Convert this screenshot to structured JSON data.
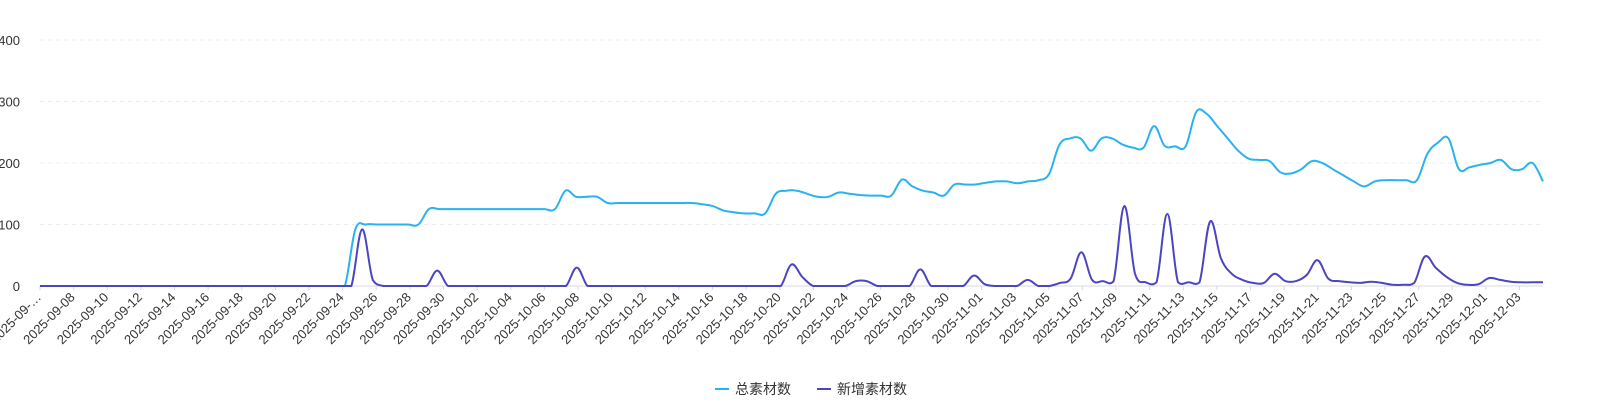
{
  "chart_data": {
    "type": "line",
    "title": "",
    "xlabel": "",
    "ylabel": "",
    "ylim": [
      0,
      400
    ],
    "yticks": [
      0,
      100,
      200,
      300,
      400
    ],
    "grid": true,
    "legend_position": "bottom-center",
    "x_tick_labels": [
      "2025-09-…",
      "2025-09-08",
      "2025-09-10",
      "2025-09-12",
      "2025-09-14",
      "2025-09-16",
      "2025-09-18",
      "2025-09-20",
      "2025-09-22",
      "2025-09-24",
      "2025-09-26",
      "2025-09-28",
      "2025-09-30",
      "2025-10-02",
      "2025-10-04",
      "2025-10-06",
      "2025-10-08",
      "2025-10-10",
      "2025-10-12",
      "2025-10-14",
      "2025-10-16",
      "2025-10-18",
      "2025-10-20",
      "2025-10-22",
      "2025-10-24",
      "2025-10-26",
      "2025-10-28",
      "2025-10-30",
      "2025-11-01",
      "2025-11-03",
      "2025-11-05",
      "2025-11-07",
      "2025-11-09",
      "2025-11-11",
      "2025-11-13",
      "2025-11-15",
      "2025-11-17",
      "2025-11-19",
      "2025-11-21",
      "2025-11-23",
      "2025-11-25",
      "2025-11-27",
      "2025-11-29",
      "2025-12-01",
      "2025-12-03"
    ],
    "series": [
      {
        "name": "总素材数",
        "color": "#2ab2f0",
        "values": [
          0,
          0,
          0,
          0,
          0,
          0,
          0,
          0,
          0,
          0,
          0,
          0,
          0,
          0,
          0,
          0,
          0,
          0,
          0,
          0,
          0,
          0,
          0,
          0,
          0,
          0,
          0,
          0,
          0,
          0,
          92,
          100,
          100,
          100,
          100,
          100,
          100,
          125,
          125,
          125,
          125,
          125,
          125,
          125,
          125,
          125,
          125,
          125,
          125,
          125,
          155,
          145,
          145,
          145,
          135,
          135,
          135,
          135,
          135,
          135,
          135,
          135,
          135,
          133,
          130,
          123,
          120,
          118,
          118,
          118,
          150,
          155,
          155,
          150,
          145,
          145,
          152,
          150,
          148,
          147,
          147,
          147,
          173,
          162,
          155,
          152,
          147,
          165,
          165,
          165,
          168,
          170,
          170,
          167,
          170,
          172,
          182,
          230,
          240,
          240,
          220,
          240,
          240,
          230,
          225,
          225,
          260,
          228,
          227,
          227,
          283,
          280,
          260,
          240,
          220,
          207,
          205,
          203,
          185,
          183,
          190,
          203,
          200,
          190,
          180,
          170,
          162,
          170,
          172,
          172,
          172,
          172,
          215,
          233,
          240,
          190,
          193,
          197,
          200,
          205,
          190,
          190,
          200,
          170
        ]
      },
      {
        "name": "新增素材数",
        "color": "#4b45c2",
        "values": [
          0,
          0,
          0,
          0,
          0,
          0,
          0,
          0,
          0,
          0,
          0,
          0,
          0,
          0,
          0,
          0,
          0,
          0,
          0,
          0,
          0,
          0,
          0,
          0,
          0,
          0,
          0,
          0,
          0,
          0,
          92,
          10,
          0,
          0,
          0,
          0,
          0,
          25,
          0,
          0,
          0,
          0,
          0,
          0,
          0,
          0,
          0,
          0,
          0,
          0,
          30,
          0,
          0,
          0,
          0,
          0,
          0,
          0,
          0,
          0,
          0,
          0,
          0,
          0,
          0,
          0,
          0,
          0,
          0,
          0,
          35,
          15,
          0,
          0,
          0,
          0,
          8,
          8,
          0,
          0,
          0,
          0,
          27,
          0,
          0,
          0,
          0,
          17,
          3,
          0,
          0,
          0,
          10,
          0,
          0,
          5,
          12,
          55,
          10,
          8,
          8,
          130,
          20,
          6,
          6,
          117,
          6,
          6,
          6,
          105,
          45,
          20,
          10,
          5,
          5,
          20,
          8,
          8,
          18,
          42,
          12,
          8,
          6,
          5,
          7,
          5,
          2,
          2,
          5,
          48,
          30,
          15,
          5,
          2,
          3,
          13,
          10,
          7,
          6,
          6,
          6
        ]
      }
    ]
  }
}
